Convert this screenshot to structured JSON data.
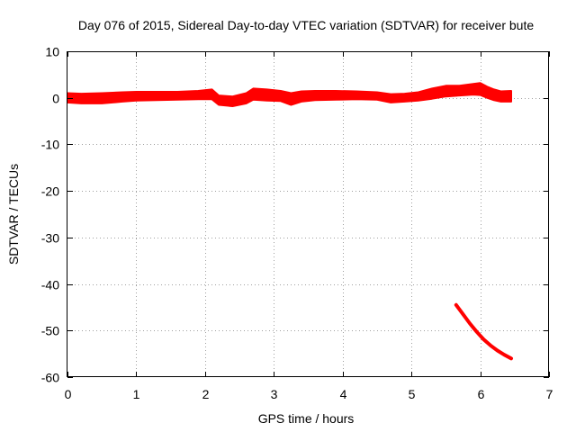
{
  "chart_data": {
    "type": "line",
    "title": "Day 076 of 2015, Sidereal Day-to-day VTEC variation (SDTVAR) for receiver bute",
    "xlabel": "GPS time / hours",
    "ylabel": "SDTVAR / TECUs",
    "xlim": [
      0,
      7
    ],
    "ylim": [
      -60,
      10
    ],
    "xticks": [
      0,
      1,
      2,
      3,
      4,
      5,
      6,
      7
    ],
    "yticks": [
      10,
      0,
      -10,
      -20,
      -30,
      -40,
      -50,
      -60
    ],
    "grid": true,
    "color": "#ff0000",
    "series": [
      {
        "name": "main",
        "band": true,
        "x": [
          0.0,
          0.2,
          0.5,
          0.8,
          1.0,
          1.3,
          1.6,
          1.9,
          2.1,
          2.2,
          2.4,
          2.6,
          2.7,
          2.9,
          3.1,
          3.25,
          3.4,
          3.6,
          3.9,
          4.2,
          4.5,
          4.7,
          4.9,
          5.1,
          5.3,
          5.5,
          5.7,
          5.9,
          6.0,
          6.1,
          6.2,
          6.3,
          6.45
        ],
        "upper": [
          1.0,
          0.9,
          1.0,
          1.2,
          1.3,
          1.3,
          1.3,
          1.5,
          1.8,
          0.5,
          0.3,
          1.0,
          2.0,
          1.8,
          1.5,
          1.0,
          1.4,
          1.5,
          1.5,
          1.4,
          1.2,
          0.8,
          0.9,
          1.2,
          2.0,
          2.6,
          2.6,
          3.0,
          3.2,
          2.4,
          1.8,
          1.4,
          1.5
        ],
        "lower": [
          -1.0,
          -1.2,
          -1.2,
          -0.8,
          -0.6,
          -0.5,
          -0.4,
          -0.3,
          -0.3,
          -1.5,
          -1.8,
          -1.2,
          -0.4,
          -0.6,
          -0.7,
          -1.5,
          -0.8,
          -0.5,
          -0.4,
          -0.3,
          -0.4,
          -1.0,
          -0.8,
          -0.6,
          -0.2,
          0.3,
          0.5,
          0.7,
          0.6,
          0.0,
          -0.5,
          -0.8,
          -0.8
        ]
      },
      {
        "name": "drop",
        "band": false,
        "x": [
          5.65,
          5.75,
          5.85,
          5.95,
          6.05,
          6.15,
          6.25,
          6.35,
          6.45
        ],
        "y": [
          -44.5,
          -46.5,
          -48.5,
          -50.3,
          -51.9,
          -53.2,
          -54.3,
          -55.2,
          -56.0
        ]
      }
    ]
  }
}
